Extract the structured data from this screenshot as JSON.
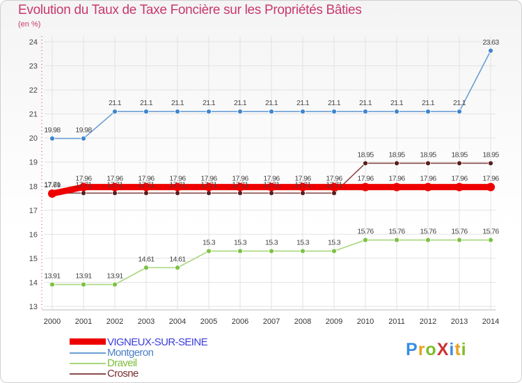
{
  "title": "Evolution du Taux de Taxe Foncière sur les Propriétés Bâties",
  "unit_label": "(en %)",
  "logo": {
    "text": "ProXiti",
    "letters": [
      "P",
      "r",
      "o",
      "X",
      "i",
      "t",
      "i"
    ],
    "colors": [
      "#3b8de0",
      "#e8a020",
      "#7dbd2a",
      "#cc3333",
      "#3b8de0",
      "#e8a020",
      "#7dbd2a"
    ]
  },
  "chart_data": {
    "type": "line",
    "x": [
      "2000",
      "2001",
      "2002",
      "2003",
      "2004",
      "2005",
      "2006",
      "2007",
      "2008",
      "2009",
      "2010",
      "2011",
      "2012",
      "2013",
      "2014"
    ],
    "ylim": [
      13,
      24
    ],
    "yticks": [
      "13",
      "14",
      "15",
      "16",
      "17",
      "18",
      "19",
      "20",
      "21",
      "22",
      "23",
      "24"
    ],
    "grid": true,
    "series": [
      {
        "name": "VIGNEUX-SUR-SEINE",
        "color": "#ee0000",
        "labels": [
          "17.69",
          "17.96",
          "17.96",
          "17.96",
          "17.96",
          "17.96",
          "17.96",
          "17.96",
          "17.96",
          "17.96",
          "17.96",
          "17.96",
          "17.96",
          "17.96",
          "17.96"
        ]
      },
      {
        "name": "Montgeron",
        "color": "#6a9ed6",
        "labels": [
          "19.98",
          "19.98",
          "21.1",
          "21.1",
          "21.1",
          "21.1",
          "21.1",
          "21.1",
          "21.1",
          "21.1",
          "21.1",
          "21.1",
          "21.1",
          "21.1",
          "23.63"
        ]
      },
      {
        "name": "Draveil",
        "color": "#a6d67a",
        "labels": [
          "13.91",
          "13.91",
          "13.91",
          "14.61",
          "14.61",
          "15.3",
          "15.3",
          "15.3",
          "15.3",
          "15.3",
          "15.76",
          "15.76",
          "15.76",
          "15.76",
          "15.76"
        ]
      },
      {
        "name": "Crosne",
        "color": "#8b4a4a",
        "labels": [
          "17.71",
          "17.71",
          "17.71",
          "17.71",
          "17.71",
          "17.71",
          "17.71",
          "17.71",
          "17.71",
          "17.71",
          "18.95",
          "18.95",
          "18.95",
          "18.95",
          "18.95"
        ]
      }
    ]
  }
}
